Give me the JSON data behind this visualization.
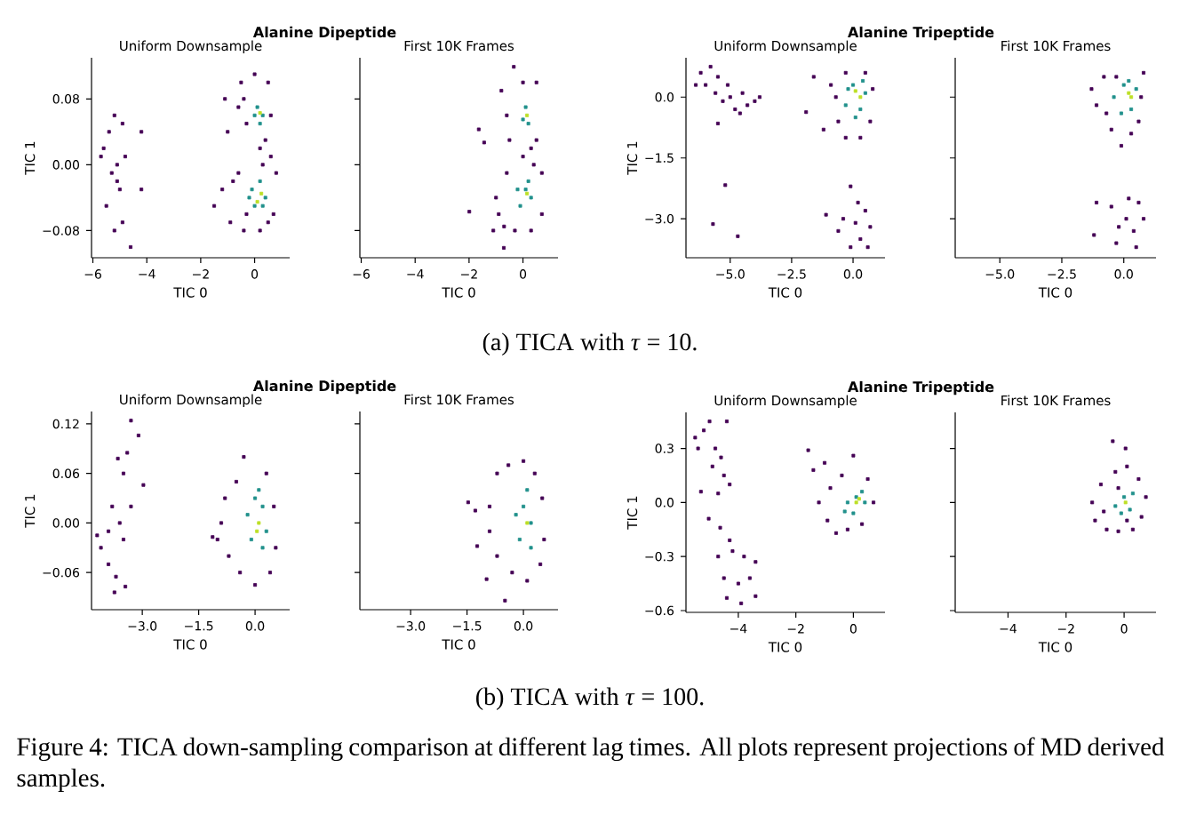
{
  "chart_data": [
    {
      "type": "scatter",
      "title": "Alanine Dipeptide",
      "subtitle": "Uniform Downsample",
      "xlabel": "TIC 0",
      "ylabel": "TIC 1",
      "marker": "square",
      "xlim": [
        -6.05,
        1.3
      ],
      "ylim": [
        -0.113,
        0.13
      ],
      "xticks": [
        {
          "value": -6,
          "label": "−6"
        },
        {
          "value": -4,
          "label": "−4"
        },
        {
          "value": -2,
          "label": "−2"
        },
        0
      ],
      "yticks": [
        {
          "value": -0.08,
          "label": "−0.08"
        },
        {
          "value": 0,
          "label": "0.00"
        },
        {
          "value": 0.08,
          "label": "0.08"
        }
      ],
      "series": [
        {
          "color": "#440154",
          "x": [
            -5.6,
            -5.4,
            -5.3,
            -5.2,
            -5.1,
            -5.0,
            -4.9,
            -4.8,
            -5.5,
            -5.2,
            -4.9,
            -4.6,
            -4.2,
            -4.2,
            -5.7,
            -5.1,
            -0.5,
            -0.3,
            -0.4,
            0.5,
            0.6,
            0.4,
            -0.6,
            -1.1,
            -1.0,
            0.0,
            0.2,
            0.3,
            -1.5,
            -1.2,
            -0.8,
            -0.9,
            -0.4,
            0.2,
            0.7,
            0.8,
            0.6,
            -0.6,
            -0.3,
            0.5
          ],
          "values": [
            0.02,
            0.04,
            -0.01,
            0.06,
            0.0,
            -0.03,
            0.05,
            0.01,
            -0.05,
            -0.08,
            -0.07,
            -0.1,
            0.04,
            -0.03,
            0.01,
            -0.02,
            0.1,
            0.05,
            0.08,
            0.1,
            0.06,
            0.03,
            0.07,
            0.08,
            0.04,
            0.11,
            0.02,
            0.0,
            -0.05,
            -0.03,
            -0.02,
            -0.07,
            -0.08,
            -0.08,
            -0.06,
            -0.01,
            0.01,
            -0.01,
            -0.06,
            -0.07
          ]
        },
        {
          "color": "#21918c",
          "x": [
            0.1,
            0.2,
            0.0,
            0.3,
            -0.1,
            0.2,
            0.4,
            0.0,
            0.3,
            -0.2
          ],
          "values": [
            0.07,
            0.05,
            0.06,
            0.06,
            -0.03,
            -0.02,
            -0.04,
            -0.05,
            -0.05,
            -0.04
          ]
        },
        {
          "color": "#bddf26",
          "x": [
            0.2,
            0.25,
            0.1
          ],
          "values": [
            0.063,
            -0.035,
            -0.045
          ]
        }
      ]
    },
    {
      "type": "scatter",
      "subtitle": "First 10K Frames",
      "xlabel": "TIC 0",
      "marker": "square",
      "tick_labels": "x",
      "xlim": [
        -6.05,
        1.3
      ],
      "ylim": [
        -0.113,
        0.13
      ],
      "xticks": [
        {
          "value": -6,
          "label": "−6"
        },
        {
          "value": -4,
          "label": "−4"
        },
        {
          "value": -2,
          "label": "−2"
        },
        0
      ],
      "yticks": [
        {
          "value": -0.08,
          "label": null
        },
        {
          "value": 0,
          "label": null
        },
        {
          "value": 0.08,
          "label": null
        }
      ],
      "series": [
        {
          "color": "#440154",
          "x": [
            -0.34,
            -1.64,
            -1.44,
            -1.99,
            -0.71,
            -0.8,
            -0.6,
            -0.5,
            0.5,
            0.5,
            0.0,
            0.3,
            -1.0,
            -1.1,
            -0.9,
            -0.6,
            -0.3,
            0.3,
            0.7,
            0.7,
            0.4,
            -0.7,
            0.0
          ],
          "values": [
            0.119,
            0.043,
            0.027,
            -0.057,
            -0.101,
            0.09,
            0.06,
            0.03,
            0.1,
            0.03,
            0.1,
            0.02,
            -0.04,
            -0.08,
            -0.06,
            -0.01,
            -0.08,
            -0.08,
            -0.06,
            -0.01,
            0.0,
            -0.075,
            0.01
          ]
        },
        {
          "color": "#21918c",
          "x": [
            0.1,
            0.2,
            0.0,
            0.1,
            0.3,
            -0.1,
            0.2,
            -0.2
          ],
          "values": [
            0.07,
            0.05,
            0.055,
            -0.03,
            -0.04,
            -0.05,
            -0.02,
            -0.03
          ]
        },
        {
          "color": "#bddf26",
          "x": [
            0.15,
            0.15
          ],
          "values": [
            0.06,
            -0.035
          ]
        }
      ]
    },
    {
      "type": "scatter",
      "title": "Alanine Tripeptide",
      "subtitle": "Uniform Downsample",
      "xlabel": "TIC 0",
      "ylabel": "TIC 1",
      "marker": "square",
      "xlim": [
        -6.8,
        1.3
      ],
      "ylim": [
        -3.96,
        0.97
      ],
      "xticks": [
        {
          "value": -5,
          "label": "−5.0"
        },
        {
          "value": -2.5,
          "label": "−2.5"
        },
        {
          "value": 0,
          "label": "0.0"
        }
      ],
      "yticks": [
        {
          "value": -3,
          "label": "−3.0"
        },
        {
          "value": -1.5,
          "label": "−1.5"
        },
        {
          "value": 0,
          "label": "0.0"
        }
      ],
      "series": [
        {
          "color": "#440154",
          "x": [
            -6.2,
            -6.0,
            -5.8,
            -5.6,
            -5.5,
            -5.3,
            -5.1,
            -5.0,
            -4.8,
            -4.5,
            -4.3,
            -4.0,
            -3.8,
            -5.5,
            -6.4,
            -4.6,
            -5.2,
            -5.7,
            -4.69,
            -1.91,
            -1.6,
            -1.2,
            -0.7,
            -0.6,
            -0.3,
            0.3,
            0.7,
            0.8,
            0.5,
            -0.3,
            -0.9,
            -1.1,
            -0.4,
            -0.1,
            0.2,
            0.5,
            0.7,
            0.3,
            -0.1,
            0.6,
            0.1,
            -0.6
          ],
          "values": [
            0.6,
            0.3,
            0.75,
            0.1,
            0.5,
            -0.1,
            0.3,
            0.0,
            -0.3,
            0.1,
            -0.2,
            -0.1,
            0.0,
            -0.65,
            0.3,
            -0.4,
            -2.17,
            -3.13,
            -3.43,
            -0.37,
            0.5,
            -0.8,
            0.0,
            -0.6,
            -1.0,
            -1.0,
            -0.6,
            0.2,
            0.6,
            0.6,
            0.3,
            -2.9,
            -3.0,
            -2.2,
            -2.6,
            -2.8,
            -3.2,
            -3.5,
            -3.7,
            -3.7,
            -3.1,
            -3.3
          ]
        },
        {
          "color": "#21918c",
          "x": [
            -0.3,
            0.0,
            0.3,
            0.5,
            -0.2,
            0.1,
            0.4
          ],
          "values": [
            -0.2,
            0.3,
            -0.3,
            0.1,
            0.2,
            -0.5,
            0.4
          ]
        },
        {
          "color": "#bddf26",
          "x": [
            0.1,
            0.3
          ],
          "values": [
            0.15,
            0.0
          ]
        }
      ]
    },
    {
      "type": "scatter",
      "subtitle": "First 10K Frames",
      "xlabel": "TIC 0",
      "marker": "square",
      "tick_labels": "x",
      "xlim": [
        -6.8,
        1.3
      ],
      "ylim": [
        -3.96,
        0.97
      ],
      "xticks": [
        {
          "value": -5,
          "label": "−5.0"
        },
        {
          "value": -2.5,
          "label": "−2.5"
        },
        {
          "value": 0,
          "label": "0.0"
        }
      ],
      "yticks": [
        {
          "value": -3,
          "label": null
        },
        {
          "value": -1.5,
          "label": null
        },
        {
          "value": 0,
          "label": null
        }
      ],
      "annotations": [
        "(a) TICA with *τ* = 10."
      ],
      "series": [
        {
          "color": "#440154",
          "x": [
            -1.3,
            -1.1,
            -0.8,
            -0.7,
            -0.5,
            -0.1,
            0.3,
            0.6,
            0.8,
            0.7,
            -0.3,
            -1.1,
            -1.2,
            -0.5,
            -0.3,
            0.1,
            0.4,
            0.6,
            0.8,
            0.5,
            -0.2,
            0.2
          ],
          "values": [
            0.2,
            -0.2,
            0.5,
            -0.4,
            -0.8,
            -1.2,
            -0.9,
            -0.6,
            0.6,
            0.0,
            0.5,
            -2.6,
            -3.4,
            -2.7,
            -3.6,
            -3.0,
            -3.3,
            -2.6,
            -3.0,
            -3.7,
            -3.2,
            -2.5
          ]
        },
        {
          "color": "#21918c",
          "x": [
            -0.4,
            0.0,
            0.3,
            0.5,
            -0.1,
            0.2
          ],
          "values": [
            0.0,
            0.3,
            -0.3,
            0.2,
            -0.4,
            0.4
          ]
        },
        {
          "color": "#bddf26",
          "x": [
            0.2,
            0.3
          ],
          "values": [
            0.1,
            0.0
          ]
        }
      ]
    },
    {
      "type": "scatter",
      "title": "Alanine Dipeptide",
      "subtitle": "Uniform Downsample",
      "xlabel": "TIC 0",
      "ylabel": "TIC 1",
      "marker": "square",
      "xlim": [
        -4.35,
        0.92
      ],
      "ylim": [
        -0.105,
        0.135
      ],
      "xticks": [
        {
          "value": -3,
          "label": "−3.0"
        },
        {
          "value": -1.5,
          "label": "−1.5"
        },
        {
          "value": 0,
          "label": "0.0"
        }
      ],
      "yticks": [
        {
          "value": -0.06,
          "label": "−0.06"
        },
        {
          "value": 0,
          "label": "0.00"
        },
        {
          "value": 0.06,
          "label": "0.06"
        },
        {
          "value": 0.12,
          "label": "0.12"
        }
      ],
      "series": [
        {
          "color": "#440154",
          "x": [
            -3.3,
            -3.1,
            -2.97,
            -3.74,
            -3.45,
            -3.65,
            -3.5,
            -3.4,
            -3.8,
            -3.6,
            -4.1,
            -3.9,
            -3.7,
            -3.5,
            -3.3,
            -3.9,
            -4.2,
            -1.13,
            -0.8,
            -0.7,
            -0.5,
            -0.3,
            0.3,
            0.5,
            0.55,
            0.4,
            0.0,
            -0.4,
            -0.9,
            -1.0
          ],
          "values": [
            0.124,
            0.106,
            0.046,
            -0.084,
            -0.077,
            0.078,
            0.06,
            0.085,
            0.02,
            0.0,
            -0.03,
            -0.05,
            -0.065,
            -0.02,
            0.02,
            -0.01,
            -0.015,
            -0.017,
            0.03,
            -0.04,
            0.05,
            0.08,
            0.06,
            0.02,
            -0.03,
            -0.06,
            -0.075,
            -0.06,
            0.0,
            -0.02
          ]
        },
        {
          "color": "#21918c",
          "x": [
            0.0,
            0.2,
            -0.1,
            0.2,
            0.1,
            -0.2,
            0.3
          ],
          "values": [
            0.03,
            0.02,
            -0.02,
            -0.03,
            0.04,
            0.01,
            -0.01
          ]
        },
        {
          "color": "#bddf26",
          "x": [
            0.1,
            0.05
          ],
          "values": [
            0.0,
            -0.01
          ]
        }
      ]
    },
    {
      "type": "scatter",
      "subtitle": "First 10K Frames",
      "xlabel": "TIC 0",
      "marker": "square",
      "tick_labels": "x",
      "xlim": [
        -4.35,
        0.92
      ],
      "ylim": [
        -0.105,
        0.135
      ],
      "xticks": [
        {
          "value": -3,
          "label": "−3.0"
        },
        {
          "value": -1.5,
          "label": "−1.5"
        },
        {
          "value": 0,
          "label": "0.0"
        }
      ],
      "yticks": [
        {
          "value": -0.06,
          "label": null
        },
        {
          "value": 0,
          "label": null
        },
        {
          "value": 0.06,
          "label": null
        },
        {
          "value": 0.12,
          "label": null
        }
      ],
      "series": [
        {
          "color": "#440154",
          "x": [
            -1.47,
            -1.28,
            -1.23,
            -0.49,
            -0.98,
            -0.7,
            -0.4,
            0.0,
            0.3,
            0.5,
            0.55,
            0.45,
            0.1,
            -0.3,
            -0.7,
            -0.9,
            -0.9
          ],
          "values": [
            0.025,
            0.015,
            -0.028,
            -0.094,
            -0.068,
            0.06,
            0.07,
            0.075,
            0.06,
            0.03,
            -0.02,
            -0.05,
            -0.07,
            -0.06,
            -0.04,
            -0.01,
            0.02
          ]
        },
        {
          "color": "#21918c",
          "x": [
            0.0,
            0.2,
            -0.1,
            0.2,
            0.1,
            -0.2
          ],
          "values": [
            0.02,
            0.0,
            -0.02,
            -0.03,
            0.04,
            0.01
          ]
        },
        {
          "color": "#bddf26",
          "x": [
            0.1
          ],
          "values": [
            0.0
          ]
        }
      ]
    },
    {
      "type": "scatter",
      "title": "Alanine Tripeptide",
      "subtitle": "Uniform Downsample",
      "xlabel": "TIC 0",
      "ylabel": "TIC 1",
      "marker": "square",
      "xlim": [
        -5.82,
        1.1
      ],
      "ylim": [
        -0.61,
        0.5
      ],
      "xticks": [
        {
          "value": -4,
          "label": "−4"
        },
        {
          "value": -2,
          "label": "−2"
        },
        0
      ],
      "yticks": [
        {
          "value": -0.6,
          "label": "−0.6"
        },
        {
          "value": -0.3,
          "label": "−0.3"
        },
        {
          "value": 0,
          "label": "0.0"
        },
        0.3
      ],
      "series": [
        {
          "color": "#440154",
          "x": [
            -5.5,
            -5.2,
            -5.0,
            -4.8,
            -4.9,
            -4.6,
            -4.4,
            -4.5,
            -4.3,
            -5.3,
            -4.7,
            -5.4,
            -5.03,
            -4.63,
            -4.3,
            -4.7,
            -4.2,
            -3.8,
            -3.4,
            -4.5,
            -4.0,
            -3.6,
            -4.4,
            -3.9,
            -3.4,
            -1.57,
            -1.39,
            -1.2,
            -0.9,
            -0.6,
            -0.2,
            0.3,
            0.7,
            0.5,
            0.0,
            -0.4,
            -0.8,
            -1.0
          ],
          "values": [
            0.36,
            0.4,
            0.45,
            0.3,
            0.2,
            0.25,
            0.45,
            0.15,
            0.1,
            0.06,
            0.05,
            0.3,
            -0.09,
            -0.14,
            -0.21,
            -0.3,
            -0.27,
            -0.3,
            -0.33,
            -0.42,
            -0.45,
            -0.42,
            -0.53,
            -0.56,
            -0.52,
            0.29,
            0.18,
            0.0,
            -0.1,
            -0.17,
            -0.15,
            -0.12,
            0.0,
            0.13,
            0.26,
            0.15,
            0.08,
            0.22
          ]
        },
        {
          "color": "#21918c",
          "x": [
            -0.2,
            0.1,
            0.3,
            -0.3,
            0.0,
            0.4
          ],
          "values": [
            0.0,
            0.03,
            0.06,
            -0.05,
            -0.06,
            0.0
          ]
        },
        {
          "color": "#bddf26",
          "x": [
            0.1,
            0.2
          ],
          "values": [
            0.0,
            0.02
          ]
        }
      ]
    },
    {
      "type": "scatter",
      "subtitle": "First 10K Frames",
      "xlabel": "TIC 0",
      "marker": "square",
      "tick_labels": "x",
      "xlim": [
        -5.82,
        1.1
      ],
      "ylim": [
        -0.61,
        0.5
      ],
      "xticks": [
        {
          "value": -4,
          "label": "−4"
        },
        {
          "value": -2,
          "label": "−2"
        },
        0
      ],
      "yticks": [
        {
          "value": -0.6,
          "label": null
        },
        {
          "value": -0.3,
          "label": null
        },
        {
          "value": 0,
          "label": null
        },
        {
          "value": 0.3,
          "label": null
        }
      ],
      "annotations": [
        "(b) TICA with *τ* = 100.",
        "Figure 4: TICA down-sampling comparison at different lag times. All plots represent projections of MD derived samples."
      ],
      "series": [
        {
          "color": "#440154",
          "x": [
            -0.39,
            0.05,
            -1.1,
            -1.0,
            -0.8,
            -0.6,
            -0.2,
            0.3,
            0.6,
            0.75,
            0.5,
            0.1,
            -0.3,
            -0.7,
            0.1,
            -0.2
          ],
          "values": [
            0.34,
            0.3,
            0.0,
            -0.1,
            0.1,
            -0.15,
            -0.16,
            -0.15,
            -0.08,
            0.03,
            0.13,
            0.2,
            0.17,
            -0.05,
            -0.1,
            0.08
          ]
        },
        {
          "color": "#21918c",
          "x": [
            -0.3,
            0.0,
            0.3,
            -0.1,
            0.2
          ],
          "values": [
            -0.02,
            0.03,
            0.05,
            -0.06,
            -0.04
          ]
        },
        {
          "color": "#bddf26",
          "x": [
            0.05
          ],
          "values": [
            0.0
          ]
        }
      ]
    }
  ]
}
